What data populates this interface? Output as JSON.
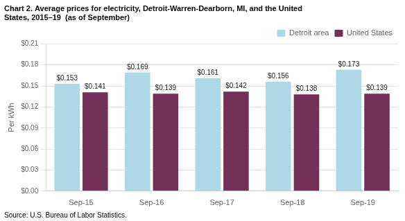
{
  "chart_data": {
    "type": "bar",
    "title": [
      "Chart 2. Average prices for electricity, Detroit-Warren-Dearborn, MI, and the United",
      "States, 2015–19  (as of September)"
    ],
    "ylabel": "Per kWh",
    "annotations": [
      "Source: U.S. Bureau of Labor Statistics."
    ],
    "categories": [
      "Sep-15",
      "Sep-16",
      "Sep-17",
      "Sep-18",
      "Sep-19"
    ],
    "series": [
      {
        "name": "Detroit area",
        "color": "#add8e6",
        "values": [
          0.153,
          0.169,
          0.161,
          0.156,
          0.173
        ],
        "value_labels": [
          "$0.153",
          "$0.169",
          "$0.161",
          "$0.156",
          "$0.173"
        ]
      },
      {
        "name": "United States",
        "color": "#722f57",
        "values": [
          0.141,
          0.139,
          0.142,
          0.138,
          0.139
        ],
        "value_labels": [
          "$0.141",
          "$0.139",
          "$0.142",
          "$0.138",
          "$0.139"
        ]
      }
    ],
    "ylim": [
      0,
      0.21
    ],
    "yticks": [
      {
        "value": 0.0,
        "label": "$0.00"
      },
      {
        "value": 0.03,
        "label": "$0.03"
      },
      {
        "value": 0.06,
        "label": "$0.06"
      },
      {
        "value": 0.09,
        "label": "$0.09"
      },
      {
        "value": 0.12,
        "label": "$0.12"
      },
      {
        "value": 0.15,
        "label": "$0.15"
      },
      {
        "value": 0.18,
        "label": "$0.18"
      },
      {
        "value": 0.21,
        "label": "$0.21"
      }
    ],
    "grid": true,
    "legend": "upper right",
    "data_labels": true
  }
}
